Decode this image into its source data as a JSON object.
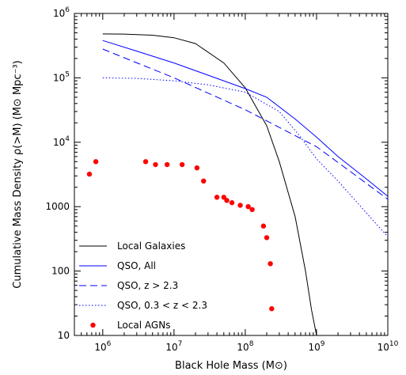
{
  "chart_data": {
    "type": "line",
    "title": "",
    "xlabel": "Black Hole Mass (M⊙)",
    "ylabel": "Cumulative Mass Density ρ(>M) (M⊙ Mpc⁻³)",
    "x_scale": "log",
    "y_scale": "log",
    "xlim": [
      400000.0,
      10000000000.0
    ],
    "ylim": [
      10,
      1000000.0
    ],
    "x_ticks": [
      {
        "value": 1000000.0,
        "base": "10",
        "exp": "6"
      },
      {
        "value": 10000000.0,
        "base": "10",
        "exp": "7"
      },
      {
        "value": 100000000.0,
        "base": "10",
        "exp": "8"
      },
      {
        "value": 1000000000.0,
        "base": "10",
        "exp": "9"
      },
      {
        "value": 10000000000.0,
        "base": "10",
        "exp": "10"
      }
    ],
    "y_ticks": [
      {
        "value": 10,
        "text": "10"
      },
      {
        "value": 100,
        "text": "100"
      },
      {
        "value": 1000,
        "text": "1000"
      },
      {
        "value": 10000.0,
        "base": "10",
        "exp": "4"
      },
      {
        "value": 100000.0,
        "base": "10",
        "exp": "5"
      },
      {
        "value": 1000000.0,
        "base": "10",
        "exp": "6"
      }
    ],
    "legend_position": "bottom-left",
    "series": [
      {
        "name": "Local Galaxies",
        "style": "solid",
        "color": "#000000",
        "points": [
          [
            1000000.0,
            480000
          ],
          [
            2000000.0,
            478000
          ],
          [
            5000000.0,
            460000
          ],
          [
            10000000.0,
            420000
          ],
          [
            20000000.0,
            340000
          ],
          [
            50000000.0,
            170000
          ],
          [
            100000000.0,
            70000
          ],
          [
            200000000.0,
            18000
          ],
          [
            300000000.0,
            5000
          ],
          [
            500000000.0,
            700
          ],
          [
            700000000.0,
            100
          ],
          [
            850000000.0,
            25
          ],
          [
            1000000000.0,
            10
          ]
        ]
      },
      {
        "name": "QSO, All",
        "style": "solid",
        "color": "#0000ff",
        "points": [
          [
            1000000.0,
            380000
          ],
          [
            3000000.0,
            260000
          ],
          [
            10000000.0,
            170000
          ],
          [
            30000000.0,
            110000
          ],
          [
            100000000.0,
            68000
          ],
          [
            200000000.0,
            50000
          ],
          [
            500000000.0,
            23000
          ],
          [
            1000000000.0,
            12000
          ],
          [
            2000000000.0,
            6000
          ],
          [
            5000000000.0,
            2700
          ],
          [
            10000000000.0,
            1450
          ]
        ]
      },
      {
        "name": "QSO, z > 2.3",
        "style": "dashed",
        "color": "#0000ff",
        "points": [
          [
            1000000.0,
            280000
          ],
          [
            10000000.0,
            100000
          ],
          [
            100000000.0,
            32000
          ],
          [
            1000000000.0,
            8500
          ],
          [
            3000000000.0,
            3500
          ],
          [
            10000000000.0,
            1300
          ]
        ]
      },
      {
        "name": "QSO, 0.3 < z < 2.3",
        "style": "dotted",
        "color": "#0000ff",
        "points": [
          [
            1000000.0,
            100000
          ],
          [
            3000000.0,
            98000
          ],
          [
            10000000.0,
            90000
          ],
          [
            30000000.0,
            78000
          ],
          [
            100000000.0,
            60000
          ],
          [
            300000000.0,
            30000
          ],
          [
            600000000.0,
            12000
          ],
          [
            1000000000.0,
            5500
          ],
          [
            2000000000.0,
            2500
          ],
          [
            5000000000.0,
            800
          ],
          [
            10000000000.0,
            340
          ]
        ]
      }
    ],
    "scatter": {
      "name": "Local AGNs",
      "color": "#ff0000",
      "points": [
        [
          650000.0,
          3200
        ],
        [
          800000.0,
          5000
        ],
        [
          4000000.0,
          5000
        ],
        [
          5500000.0,
          4500
        ],
        [
          8000000.0,
          4500
        ],
        [
          13000000.0,
          4500
        ],
        [
          21000000.0,
          4000
        ],
        [
          26000000.0,
          2500
        ],
        [
          40000000.0,
          1400
        ],
        [
          50000000.0,
          1400
        ],
        [
          55000000.0,
          1250
        ],
        [
          65000000.0,
          1150
        ],
        [
          85000000.0,
          1050
        ],
        [
          110000000.0,
          1000
        ],
        [
          125000000.0,
          900
        ],
        [
          180000000.0,
          500
        ],
        [
          200000000.0,
          330
        ],
        [
          225000000.0,
          130
        ],
        [
          235000000.0,
          26
        ]
      ]
    },
    "legend": [
      {
        "label": "Local Galaxies",
        "kind": "line",
        "dash": "solid",
        "color": "#000000"
      },
      {
        "label": "QSO, All",
        "kind": "line",
        "dash": "solid",
        "color": "#0000ff"
      },
      {
        "label": "QSO, z > 2.3",
        "kind": "line",
        "dash": "dashed",
        "color": "#0000ff"
      },
      {
        "label": "QSO, 0.3 < z < 2.3",
        "kind": "line",
        "dash": "dotted",
        "color": "#0000ff"
      },
      {
        "label": "Local AGNs",
        "kind": "point",
        "color": "#ff0000"
      }
    ]
  }
}
